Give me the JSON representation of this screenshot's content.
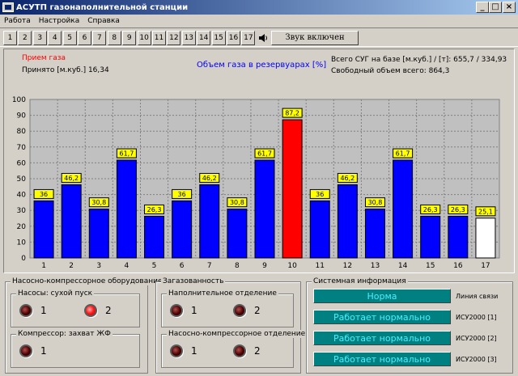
{
  "window": {
    "title": "АСУТП газонаполнительной станции"
  },
  "menu": [
    "Работа",
    "Настройка",
    "Справка"
  ],
  "toolbar": {
    "tabs": [
      "1",
      "2",
      "3",
      "4",
      "5",
      "6",
      "7",
      "8",
      "9",
      "10",
      "11",
      "12",
      "13",
      "14",
      "15",
      "16",
      "17"
    ],
    "sound_button": "Звук включен",
    "speaker_icon": "speaker-icon"
  },
  "header": {
    "receive_label": "Прием газа",
    "accepted": "Принято [м.куб.] 16,34",
    "chart_title": "Объем газа в резервуарах [%]",
    "total": "Всего СУГ на базе [м.куб.] / [т]:  655,7 / 334,93",
    "free": "Свободный объем всего: 864,3"
  },
  "colors": {
    "bar": "#0000ff",
    "bar_highlight": "#ff0000",
    "bar_empty": "#ffffff",
    "label_bg": "#ffff00",
    "status_bg": "#008080",
    "status_text": "#4af0ff",
    "receive_label": "#ff0000",
    "title": "#0000ff"
  },
  "chart_data": {
    "type": "bar",
    "categories": [
      "1",
      "2",
      "3",
      "4",
      "5",
      "6",
      "7",
      "8",
      "9",
      "10",
      "11",
      "12",
      "13",
      "14",
      "15",
      "16",
      "17"
    ],
    "values": [
      36,
      46.2,
      30.8,
      61.7,
      26.3,
      36,
      46.2,
      30.8,
      61.7,
      87.2,
      36,
      46.2,
      30.8,
      61.7,
      26.3,
      26.3,
      25.1
    ],
    "labels": [
      "36",
      "46,2",
      "30,8",
      "61,7",
      "26,3",
      "36",
      "46,2",
      "30,8",
      "61,7",
      "87,2",
      "36",
      "46,2",
      "30,8",
      "61,7",
      "26,3",
      "26,3",
      "25,1"
    ],
    "highlight_index": 9,
    "empty_index": 16,
    "ylim": [
      0,
      100
    ],
    "yticks": [
      "0",
      "10",
      "20",
      "30",
      "40",
      "50",
      "60",
      "70",
      "80",
      "90",
      "100"
    ],
    "title": "Объем газа в резервуарах [%]",
    "grid": true
  },
  "equipment": {
    "title": "Насосно-компрессорное оборудование",
    "pumps": {
      "label": "Насосы: сухой пуск",
      "lamps": [
        {
          "num": "1",
          "on": false
        },
        {
          "num": "2",
          "on": true
        }
      ]
    },
    "compressor": {
      "label": "Компрессор: захват ЖФ",
      "lamps": [
        {
          "num": "1",
          "on": false
        }
      ]
    }
  },
  "gas": {
    "title": "Загазованность",
    "filling": {
      "label": "Наполнительное отделение",
      "lamps": [
        {
          "num": "1",
          "on": false
        },
        {
          "num": "2",
          "on": false
        }
      ]
    },
    "pump_comp": {
      "label": "Насосно-компрессорное отделение",
      "lamps": [
        {
          "num": "1",
          "on": false
        },
        {
          "num": "2",
          "on": false
        }
      ]
    }
  },
  "system": {
    "title": "Системная информация",
    "rows": [
      {
        "status": "Норма",
        "label": "Линия связи"
      },
      {
        "status": "Работает нормально",
        "label": "ИСУ2000 [1]"
      },
      {
        "status": "Работает нормально",
        "label": "ИСУ2000 [2]"
      },
      {
        "status": "Работает нормально",
        "label": "ИСУ2000 [3]"
      }
    ]
  }
}
